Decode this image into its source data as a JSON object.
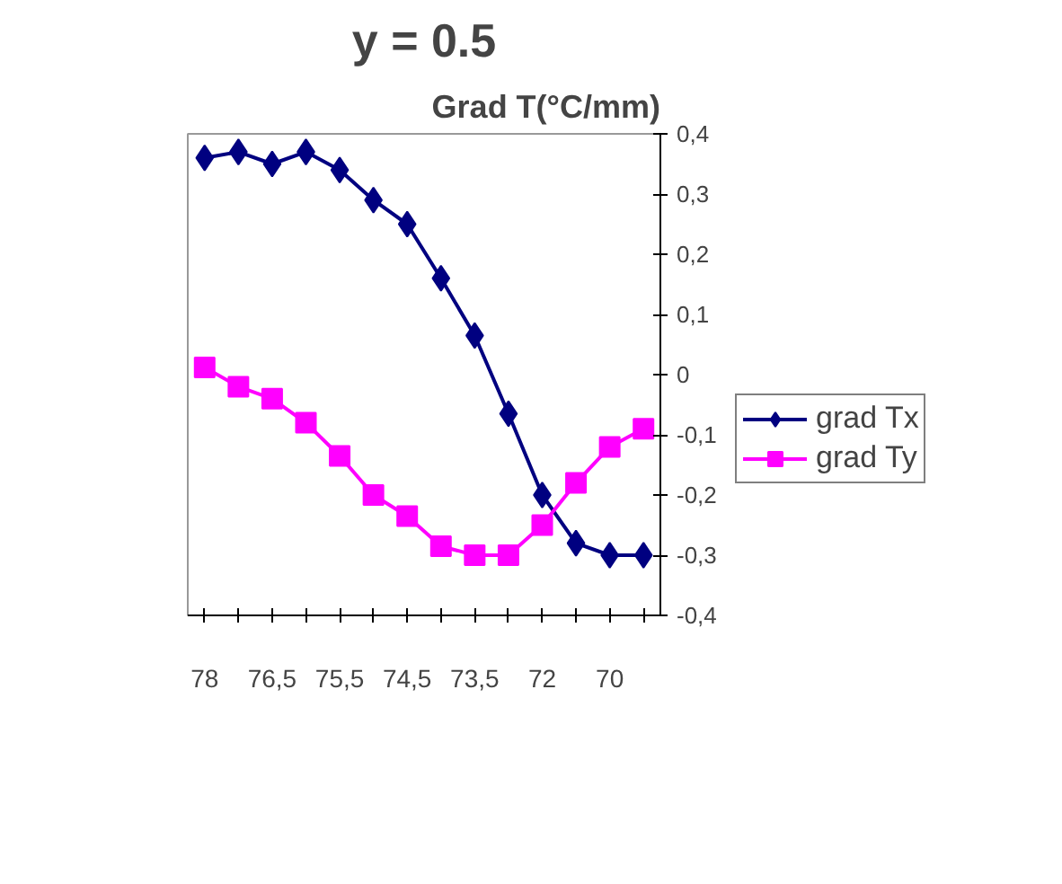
{
  "chart_data": {
    "type": "line",
    "title": "y = 0.5",
    "ylabel": "Grad T(°C/mm)",
    "categories": [
      "78",
      null,
      "76,5",
      null,
      "75,5",
      null,
      "74,5",
      null,
      "73,5",
      null,
      "72",
      null,
      "70",
      null
    ],
    "series": [
      {
        "name": "grad Tx",
        "color": "#000080",
        "marker": "diamond",
        "values": [
          0.36,
          0.37,
          0.35,
          0.37,
          0.34,
          0.29,
          0.25,
          0.16,
          0.065,
          -0.065,
          -0.2,
          -0.28,
          -0.3,
          -0.3
        ]
      },
      {
        "name": "grad Ty",
        "color": "#ff00ff",
        "marker": "square",
        "values": [
          0.012,
          -0.02,
          -0.04,
          -0.08,
          -0.135,
          -0.2,
          -0.235,
          -0.285,
          -0.3,
          -0.3,
          -0.25,
          -0.18,
          -0.12,
          -0.09
        ]
      }
    ],
    "ylim": [
      -0.4,
      0.4
    ],
    "yticks": [
      {
        "value": -0.4,
        "label": "-0,4"
      },
      {
        "value": -0.3,
        "label": "-0,3"
      },
      {
        "value": -0.2,
        "label": "-0,2"
      },
      {
        "value": -0.1,
        "label": "-0,1"
      },
      0,
      {
        "value": 0.1,
        "label": "0,1"
      },
      {
        "value": 0.2,
        "label": "0,2"
      },
      {
        "value": 0.3,
        "label": "0,3"
      },
      {
        "value": 0.4,
        "label": "0,4"
      }
    ],
    "legend": "right"
  }
}
